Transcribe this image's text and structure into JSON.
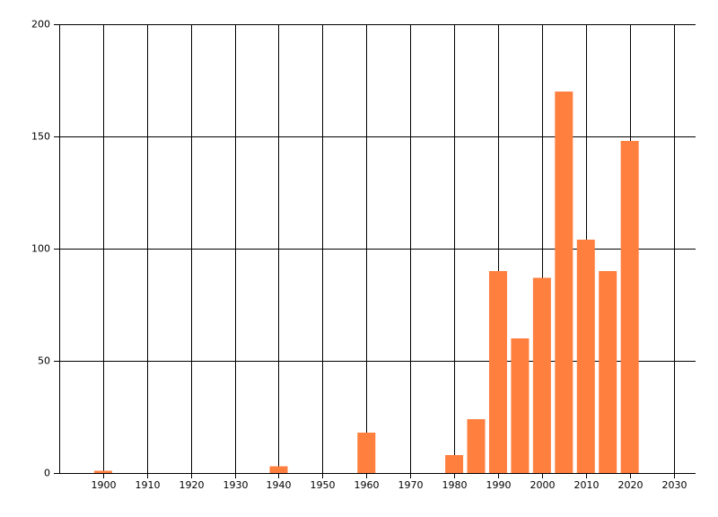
{
  "chart_data": {
    "type": "bar",
    "x": [
      1900,
      1940,
      1960,
      1980,
      1985,
      1990,
      1995,
      2000,
      2005,
      2010,
      2015,
      2020
    ],
    "values": [
      1,
      3,
      18,
      8,
      24,
      90,
      60,
      87,
      170,
      104,
      90,
      148
    ],
    "color": "#ff7f3f",
    "xlim": [
      1890,
      2035
    ],
    "xticks": [
      1900,
      1910,
      1920,
      1930,
      1940,
      1950,
      1960,
      1970,
      1980,
      1990,
      2000,
      2010,
      2020,
      2030
    ],
    "ylim": [
      0,
      200
    ],
    "yticks": [
      0,
      50,
      100,
      150,
      200
    ],
    "grid": true
  }
}
